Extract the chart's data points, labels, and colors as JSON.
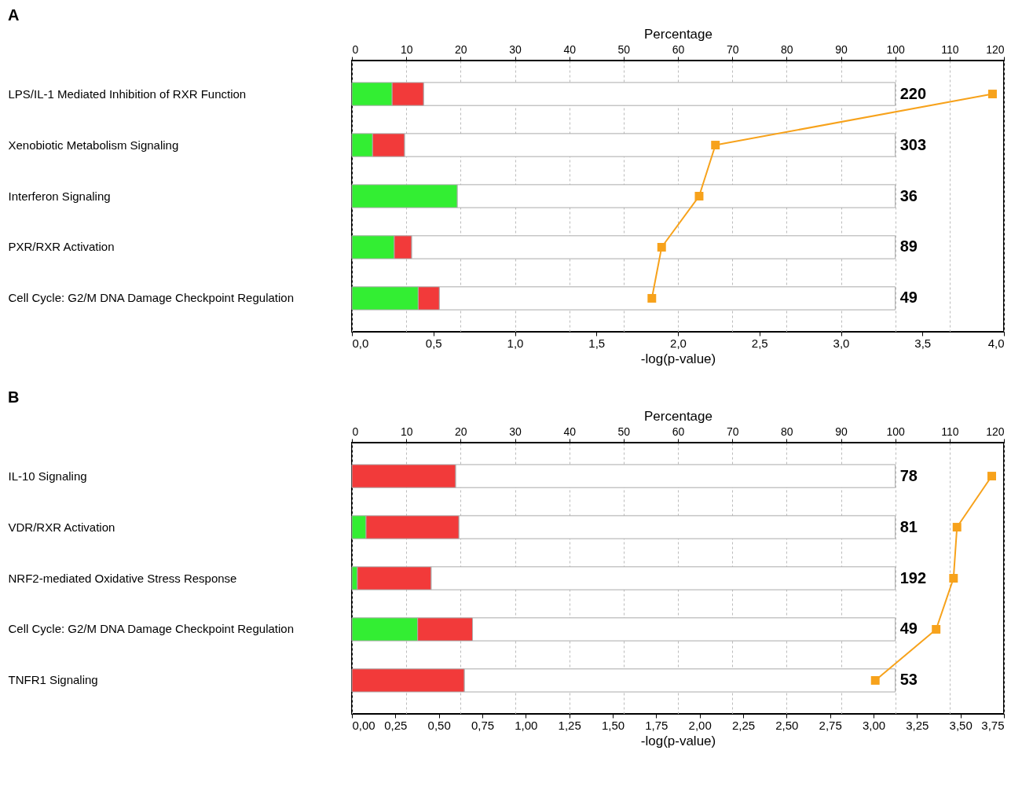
{
  "chart_data": [
    {
      "type": "bar",
      "title": "A",
      "orientation": "horizontal",
      "stacked": true,
      "categories": [
        "LPS/IL-1 Mediated Inhibition of RXR Function",
        "Xenobiotic Metabolism Signaling",
        "Interferon Signaling",
        "PXR/RXR Activation",
        "Cell Cycle: G2/M DNA Damage Checkpoint Regulation"
      ],
      "series": [
        {
          "color": "#33ee33",
          "values": [
            7.4,
            3.8,
            19.4,
            7.8,
            12.2
          ]
        },
        {
          "color": "#f23a3a",
          "values": [
            5.8,
            5.9,
            0,
            3.2,
            3.9
          ]
        },
        {
          "color": "#ffffff",
          "values": [
            86.8,
            90.3,
            80.6,
            89.0,
            83.9
          ]
        },
        {
          "type": "line",
          "axis": "x2",
          "color": "#f7a21b",
          "values": [
            3.93,
            2.23,
            2.13,
            1.9,
            1.84
          ]
        }
      ],
      "annotations": [
        "220",
        "303",
        "36",
        "89",
        "49"
      ],
      "marker": "square",
      "grid": "x",
      "x2label": "-log(p-value)",
      "xlabel": "Percentage",
      "x2lim": [
        0,
        4
      ],
      "x2ticks": [
        {
          "value": 0,
          "label": "0,0"
        },
        {
          "value": 0.5,
          "label": "0,5"
        },
        {
          "value": 1,
          "label": "1,0"
        },
        {
          "value": 1.5,
          "label": "1,5"
        },
        {
          "value": 2,
          "label": "2,0"
        },
        {
          "value": 2.5,
          "label": "2,5"
        },
        {
          "value": 3,
          "label": "3,0"
        },
        {
          "value": 3.5,
          "label": "3,5"
        },
        {
          "value": 4,
          "label": "4,0"
        }
      ],
      "xlim": [
        0,
        120
      ],
      "xticks": [
        0,
        10,
        20,
        30,
        40,
        50,
        60,
        70,
        80,
        90,
        100,
        110,
        120
      ]
    },
    {
      "type": "bar",
      "title": "B",
      "orientation": "horizontal",
      "stacked": true,
      "categories": [
        "IL-10 Signaling",
        "VDR/RXR Activation",
        "NRF2-mediated Oxidative Stress Response",
        "Cell Cycle: G2/M DNA Damage Checkpoint Regulation",
        "TNFR1 Signaling"
      ],
      "series": [
        {
          "color": "#33ee33",
          "values": [
            0,
            2.6,
            1.0,
            12.1,
            0
          ]
        },
        {
          "color": "#f23a3a",
          "values": [
            19.1,
            17.1,
            13.6,
            10.1,
            20.7
          ]
        },
        {
          "color": "#ffffff",
          "values": [
            80.9,
            80.3,
            85.4,
            77.8,
            79.3
          ]
        },
        {
          "type": "line",
          "axis": "x2",
          "color": "#f7a21b",
          "values": [
            3.68,
            3.48,
            3.46,
            3.36,
            3.01
          ]
        }
      ],
      "annotations": [
        "78",
        "81",
        "192",
        "49",
        "53"
      ],
      "marker": "square",
      "grid": "x",
      "x2label": "-log(p-value)",
      "xlabel": "Percentage",
      "x2lim": [
        0,
        3.75
      ],
      "x2ticks": [
        {
          "value": 0,
          "label": "0,00"
        },
        {
          "value": 0.25,
          "label": "0,25"
        },
        {
          "value": 0.5,
          "label": "0,50"
        },
        {
          "value": 0.75,
          "label": "0,75"
        },
        {
          "value": 1,
          "label": "1,00"
        },
        {
          "value": 1.25,
          "label": "1,25"
        },
        {
          "value": 1.5,
          "label": "1,50"
        },
        {
          "value": 1.75,
          "label": "1,75"
        },
        {
          "value": 2,
          "label": "2,00"
        },
        {
          "value": 2.25,
          "label": "2,25"
        },
        {
          "value": 2.5,
          "label": "2,50"
        },
        {
          "value": 2.75,
          "label": "2,75"
        },
        {
          "value": 3,
          "label": "3,00"
        },
        {
          "value": 3.25,
          "label": "3,25"
        },
        {
          "value": 3.5,
          "label": "3,50"
        },
        {
          "value": 3.75,
          "label": "3,75"
        }
      ],
      "xlim": [
        0,
        120
      ],
      "xticks": [
        0,
        10,
        20,
        30,
        40,
        50,
        60,
        70,
        80,
        90,
        100,
        110,
        120
      ]
    }
  ]
}
